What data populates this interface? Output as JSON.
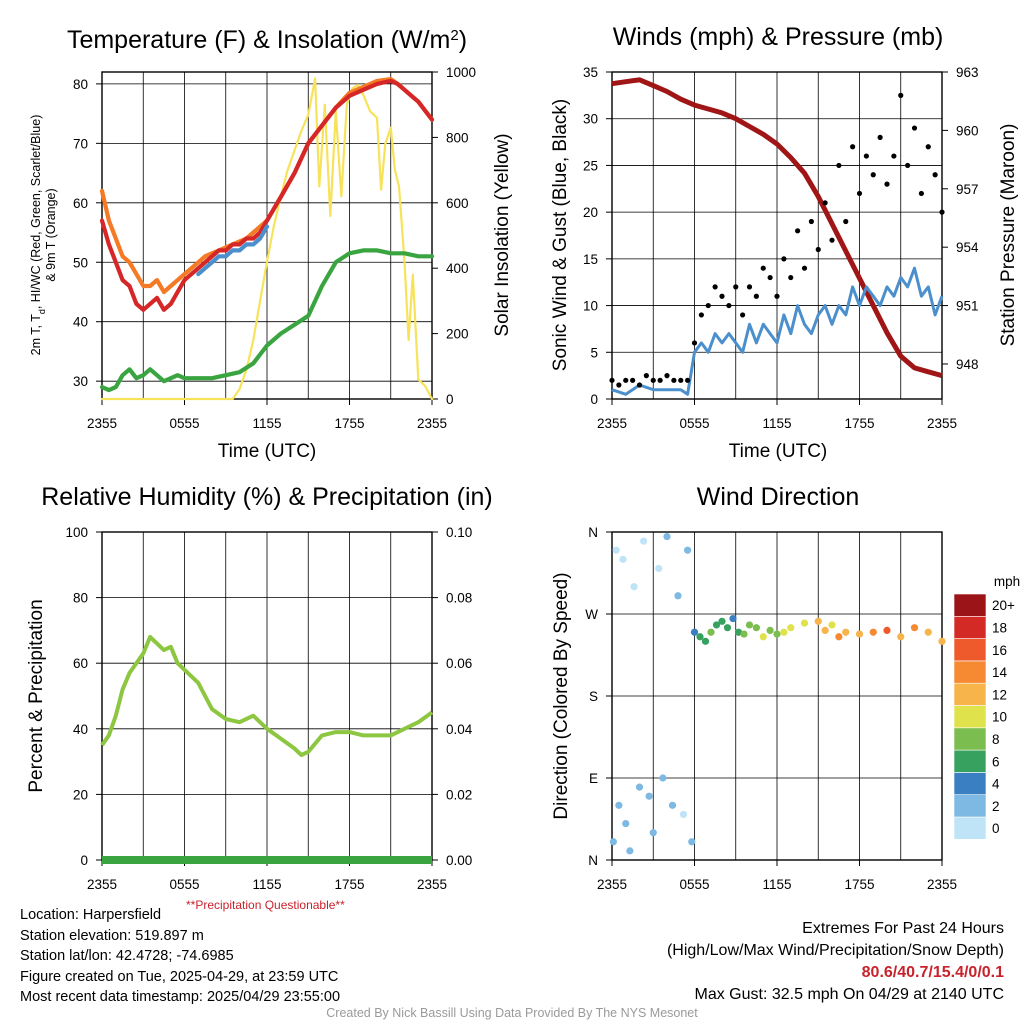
{
  "temp_panel": {
    "title": "Temperature (F) & Insolation (W/m²)",
    "title_main": "Temperature (F) & Insolation (W/m",
    "title_sup": "2",
    "title_end": ")",
    "ylabel_left_line1": "2m T, T",
    "ylabel_left_sub": "d",
    "ylabel_left_line1_end": ", HI/WC (Red, Green, Scarlet/Blue)",
    "ylabel_left_line2": "& 9m T (Orange)",
    "ylabel_right": "Solar Insolation (Yellow)",
    "xlabel": "Time (UTC)"
  },
  "wind_panel": {
    "title": "Winds (mph) & Pressure (mb)",
    "ylabel_left": "Sonic Wind & Gust (Blue, Black)",
    "ylabel_right": "Station Pressure (Maroon)",
    "xlabel": "Time (UTC)"
  },
  "rh_panel": {
    "title": "Relative Humidity (%) & Precipitation (in)",
    "ylabel_left": "Percent & Precipitation"
  },
  "dir_panel": {
    "title": "Wind Direction",
    "ylabel_left": "Direction (Colored By Speed)",
    "colorbar_unit": "mph"
  },
  "x_ticks": [
    "2355",
    "0555",
    "1155",
    "1755",
    "2355"
  ],
  "chart_data": [
    {
      "id": "temperature",
      "type": "line",
      "title": "Temperature (F) & Insolation (W/m2)",
      "xlabel": "Time (UTC)",
      "ylabel": "2m T, Td, HI/WC (Red, Green, Scarlet/Blue) & 9m T (Orange)",
      "y2label": "Solar Insolation (Yellow)",
      "xlim": [
        0,
        24
      ],
      "ylim": [
        27,
        82
      ],
      "y2lim": [
        0,
        1000
      ],
      "y_ticks": [
        30,
        40,
        50,
        60,
        70,
        80
      ],
      "y2_ticks": [
        0,
        200,
        400,
        600,
        800,
        1000
      ],
      "x_tick_hours": [
        0,
        6,
        12,
        18,
        24
      ],
      "colors": {
        "temp_2m": "#d62728",
        "temp_9m": "#f47a25",
        "dewpoint": "#3aa540",
        "heat_index": "#4b8fcc",
        "insolation": "#f7e35a"
      },
      "series": [
        {
          "name": "2m T",
          "axis": "left",
          "color": "#d62728",
          "x": [
            0,
            0.5,
            1,
            1.5,
            2,
            2.5,
            3,
            3.5,
            4,
            4.5,
            5,
            5.5,
            6,
            6.5,
            7,
            7.5,
            8,
            8.5,
            9,
            9.5,
            10,
            10.5,
            11,
            11.5,
            12,
            13,
            14,
            15,
            16,
            17,
            18,
            19,
            20,
            21,
            21.5,
            22,
            22.5,
            23,
            23.5,
            24
          ],
          "y": [
            57,
            53,
            50,
            47,
            46,
            43,
            42,
            43,
            44,
            42,
            43,
            45,
            47,
            48,
            49,
            50,
            51,
            52,
            52,
            53,
            53,
            54,
            54,
            55,
            57,
            61,
            65,
            70,
            73,
            76,
            78,
            79,
            80,
            80.5,
            80,
            79,
            78,
            77,
            75.5,
            74
          ]
        },
        {
          "name": "9m T",
          "axis": "left",
          "color": "#f47a25",
          "x": [
            0,
            0.5,
            1,
            1.5,
            2,
            2.5,
            3,
            3.5,
            4,
            4.5,
            5,
            5.5,
            6,
            6.5,
            7,
            7.5,
            8,
            8.5,
            9,
            9.5,
            10,
            10.5,
            11,
            11.5,
            12,
            13,
            14,
            15,
            16,
            17,
            18,
            19,
            20,
            21,
            21.5,
            22,
            22.5,
            23,
            23.5,
            24
          ],
          "y": [
            62,
            57,
            54,
            51,
            50,
            48,
            46,
            46,
            47,
            45,
            46,
            47,
            48,
            49,
            50,
            51,
            51.5,
            52,
            52.5,
            53,
            53.5,
            54,
            55,
            56,
            57,
            61,
            65,
            70,
            73,
            76,
            78.5,
            79.5,
            80.5,
            80.8,
            80,
            79,
            78,
            77,
            75.5,
            74
          ]
        },
        {
          "name": "Dew point",
          "axis": "left",
          "color": "#3aa540",
          "x": [
            0,
            0.5,
            1,
            1.5,
            2,
            2.5,
            3,
            3.5,
            4,
            4.5,
            5,
            5.5,
            6,
            7,
            8,
            9,
            10,
            11,
            12,
            13,
            14,
            15,
            16,
            17,
            18,
            19,
            20,
            21,
            22,
            23,
            24
          ],
          "y": [
            29,
            28.5,
            29,
            31,
            32,
            30.5,
            31,
            32,
            31,
            30,
            30.5,
            31,
            30.5,
            30.5,
            30.5,
            31,
            31.5,
            33,
            36,
            38,
            39.5,
            41,
            46,
            50,
            51.5,
            52,
            52,
            51.5,
            51.5,
            51,
            51
          ]
        },
        {
          "name": "Wind chill",
          "axis": "left",
          "color": "#4b8fcc",
          "x": [
            7,
            7.5,
            8,
            8.5,
            9,
            9.5,
            10,
            10.5,
            11,
            11.5,
            12
          ],
          "y": [
            48,
            49,
            50,
            51,
            51,
            52,
            52,
            53,
            53,
            54,
            56
          ]
        },
        {
          "name": "Insolation",
          "axis": "right",
          "color": "#f7e35a",
          "x": [
            0,
            9.5,
            10,
            10.5,
            11,
            11.5,
            12,
            12.5,
            13,
            13.5,
            14,
            14.5,
            15,
            15.5,
            15.8,
            16.2,
            16.6,
            17,
            17.4,
            17.8,
            18.2,
            18.6,
            19,
            19.5,
            20,
            20.3,
            20.6,
            21,
            21.3,
            21.6,
            22,
            22.3,
            22.6,
            23,
            23.5,
            24
          ],
          "y": [
            0,
            0,
            30,
            90,
            180,
            300,
            420,
            530,
            620,
            700,
            760,
            820,
            870,
            980,
            650,
            900,
            560,
            880,
            620,
            900,
            950,
            960,
            930,
            880,
            860,
            640,
            780,
            830,
            700,
            650,
            420,
            180,
            380,
            60,
            40,
            0
          ]
        }
      ]
    },
    {
      "id": "winds",
      "type": "line",
      "title": "Winds (mph) & Pressure (mb)",
      "xlabel": "Time (UTC)",
      "ylabel": "Sonic Wind & Gust (Blue, Black)",
      "y2label": "Station Pressure (Maroon)",
      "xlim": [
        0,
        24
      ],
      "ylim": [
        0,
        35
      ],
      "y2lim": [
        946.2,
        963
      ],
      "y_ticks": [
        0,
        5,
        10,
        15,
        20,
        25,
        30,
        35
      ],
      "y2_ticks": [
        948,
        951,
        954,
        957,
        960,
        963
      ],
      "colors": {
        "wind": "#4b8fcc",
        "gust": "#000000",
        "pressure": "#a01515"
      },
      "series": [
        {
          "name": "Sonic Wind",
          "axis": "left",
          "color": "#4b8fcc",
          "x": [
            0,
            1,
            2,
            3,
            4,
            5,
            5.5,
            6,
            6.5,
            7,
            7.5,
            8,
            8.5,
            9,
            9.5,
            10,
            10.5,
            11,
            11.5,
            12,
            12.5,
            13,
            13.5,
            14,
            14.5,
            15,
            15.5,
            16,
            16.5,
            17,
            17.5,
            18,
            18.5,
            19,
            19.5,
            20,
            20.5,
            21,
            21.5,
            22,
            22.5,
            23,
            23.5,
            24
          ],
          "y": [
            1,
            0.5,
            1.5,
            1,
            1,
            1,
            0.5,
            5,
            6,
            5,
            7,
            6,
            7,
            6,
            5,
            8,
            6,
            8,
            7,
            6,
            9,
            7,
            10,
            8,
            7,
            9,
            10,
            8,
            10,
            9,
            12,
            10,
            12,
            11,
            10,
            12,
            11,
            13,
            12,
            14,
            11,
            12,
            9,
            11
          ]
        },
        {
          "name": "Gust",
          "axis": "left",
          "color": "#000000",
          "style": "points",
          "x": [
            0,
            0.5,
            1,
            1.5,
            2,
            2.5,
            3,
            3.5,
            4,
            4.5,
            5,
            5.5,
            6,
            6.5,
            7,
            7.5,
            8,
            8.5,
            9,
            9.5,
            10,
            10.5,
            11,
            11.5,
            12,
            12.5,
            13,
            13.5,
            14,
            14.5,
            15,
            15.5,
            16,
            16.5,
            17,
            17.5,
            18,
            18.5,
            19,
            19.5,
            20,
            20.5,
            21,
            21.5,
            22,
            22.5,
            23,
            23.5,
            24
          ],
          "y": [
            2,
            1.5,
            2,
            2,
            1.5,
            2.5,
            2,
            2,
            2.5,
            2,
            2,
            2,
            6,
            9,
            10,
            12,
            11,
            10,
            12,
            9,
            12,
            11,
            14,
            13,
            11,
            15,
            13,
            18,
            14,
            19,
            16,
            21,
            17,
            25,
            19,
            27,
            22,
            26,
            24,
            28,
            23,
            26,
            32.5,
            25,
            29,
            22,
            27,
            24,
            20
          ]
        },
        {
          "name": "Station Pressure",
          "axis": "right",
          "color": "#a01515",
          "x": [
            0,
            1,
            2,
            3,
            4,
            5,
            6,
            7,
            8,
            9,
            10,
            11,
            12,
            13,
            14,
            15,
            16,
            17,
            18,
            19,
            20,
            21,
            22,
            23,
            24
          ],
          "y": [
            962.4,
            962.5,
            962.6,
            962.3,
            962.0,
            961.6,
            961.3,
            961.1,
            960.9,
            960.6,
            960.2,
            959.8,
            959.3,
            958.6,
            957.8,
            956.6,
            955.2,
            953.8,
            952.4,
            951.0,
            949.6,
            948.4,
            947.8,
            947.6,
            947.4
          ]
        }
      ]
    },
    {
      "id": "humidity",
      "type": "line",
      "title": "Relative Humidity (%) & Precipitation (in)",
      "ylabel": "Percent & Precipitation",
      "xlim": [
        0,
        24
      ],
      "ylim": [
        0,
        100
      ],
      "y2lim": [
        0,
        0.1
      ],
      "y_ticks": [
        0,
        20,
        40,
        60,
        80,
        100
      ],
      "y2_ticks": [
        "0.00",
        "0.02",
        "0.04",
        "0.06",
        "0.08",
        "0.10"
      ],
      "colors": {
        "rh": "#8dc641",
        "precip": "#3aa540"
      },
      "annotation": "**Precipitation Questionable**",
      "series": [
        {
          "name": "RH",
          "axis": "left",
          "color": "#8dc641",
          "x": [
            0,
            0.5,
            1,
            1.5,
            2,
            2.5,
            3,
            3.5,
            4,
            4.5,
            5,
            5.5,
            6,
            6.5,
            7,
            7.5,
            8,
            9,
            10,
            11,
            12,
            13,
            14,
            14.5,
            15,
            16,
            17,
            18,
            19,
            20,
            21,
            22,
            23,
            24
          ],
          "y": [
            35,
            38,
            44,
            52,
            57,
            60,
            63,
            68,
            66,
            64,
            65,
            60,
            58,
            56,
            54,
            50,
            46,
            43,
            42,
            44,
            40,
            37,
            34,
            32,
            33,
            38,
            39,
            39,
            38,
            38,
            38,
            40,
            42,
            45
          ]
        },
        {
          "name": "Precipitation",
          "axis": "right",
          "color": "#3aa540",
          "x": [
            0,
            24
          ],
          "y": [
            0,
            0
          ]
        }
      ]
    },
    {
      "id": "wind_direction",
      "type": "scatter",
      "title": "Wind Direction",
      "ylabel": "Direction (Colored By Speed)",
      "xlim": [
        0,
        24
      ],
      "ylim": [
        0,
        360
      ],
      "y_tick_labels": [
        "N",
        "E",
        "S",
        "W",
        "N"
      ],
      "y_tick_degrees": [
        0,
        90,
        180,
        270,
        360
      ],
      "colorbar": {
        "unit": "mph",
        "labels": [
          "0",
          "2",
          "4",
          "6",
          "8",
          "10",
          "12",
          "14",
          "16",
          "18",
          "20+"
        ],
        "colors": [
          "#bfe3f7",
          "#7db9e3",
          "#3a7fc1",
          "#37a15f",
          "#7cbd4f",
          "#dfe24a",
          "#f6b44a",
          "#f58a32",
          "#ee5a2c",
          "#d42a25",
          "#9b1518"
        ]
      },
      "series": [
        {
          "name": "Direction",
          "speeds": [
            1,
            0.5,
            1,
            0.5,
            1,
            1,
            0.5,
            1,
            0.5,
            1,
            1,
            0.5,
            1,
            1,
            1,
            1,
            0.5,
            1,
            1,
            4,
            5,
            6,
            7,
            5,
            6,
            5,
            4,
            6,
            7,
            8,
            7,
            9,
            8,
            8,
            9,
            10,
            9,
            11,
            12,
            10,
            13,
            12,
            11,
            14,
            15,
            12,
            13,
            11,
            12
          ],
          "x": [
            0.1,
            0.3,
            0.5,
            0.8,
            1.0,
            1.3,
            1.6,
            2.0,
            2.3,
            2.7,
            3.0,
            3.4,
            3.7,
            4.0,
            4.4,
            4.8,
            5.2,
            5.5,
            5.8,
            6.0,
            6.4,
            6.8,
            7.2,
            7.6,
            8.0,
            8.4,
            8.8,
            9.2,
            9.6,
            10.0,
            10.5,
            11.0,
            11.5,
            12.0,
            12.5,
            13.0,
            14.0,
            15.0,
            15.5,
            16.0,
            16.5,
            17.0,
            18.0,
            19.0,
            20.0,
            21.0,
            22.0,
            23.0,
            24.0
          ],
          "y": [
            20,
            340,
            60,
            330,
            40,
            10,
            300,
            80,
            350,
            70,
            30,
            320,
            90,
            355,
            60,
            290,
            50,
            340,
            20,
            250,
            245,
            240,
            250,
            258,
            262,
            255,
            265,
            250,
            248,
            258,
            255,
            245,
            252,
            248,
            250,
            255,
            260,
            262,
            252,
            258,
            245,
            250,
            248,
            250,
            252,
            245,
            255,
            250,
            240
          ]
        }
      ]
    }
  ],
  "info": {
    "location": "Location: Harpersfield",
    "elevation": "Station elevation: 519.897 m",
    "latlon": "Station lat/lon: 42.4728; -74.6985",
    "created": "Figure created on Tue, 2025-04-29, at 23:59 UTC",
    "recent": "Most recent data timestamp: 2025/04/29 23:55:00",
    "precip_warning": "**Precipitation Questionable**"
  },
  "extremes": {
    "heading": "Extremes For Past 24 Hours",
    "subheading": "(High/Low/Max Wind/Precipitation/Snow Depth)",
    "values": "80.6/40.7/15.4/0/0.1",
    "max_gust": "Max Gust: 32.5 mph On 04/29 at 2140 UTC"
  },
  "footer": "Created By Nick Bassill Using Data Provided By The NYS Mesonet"
}
